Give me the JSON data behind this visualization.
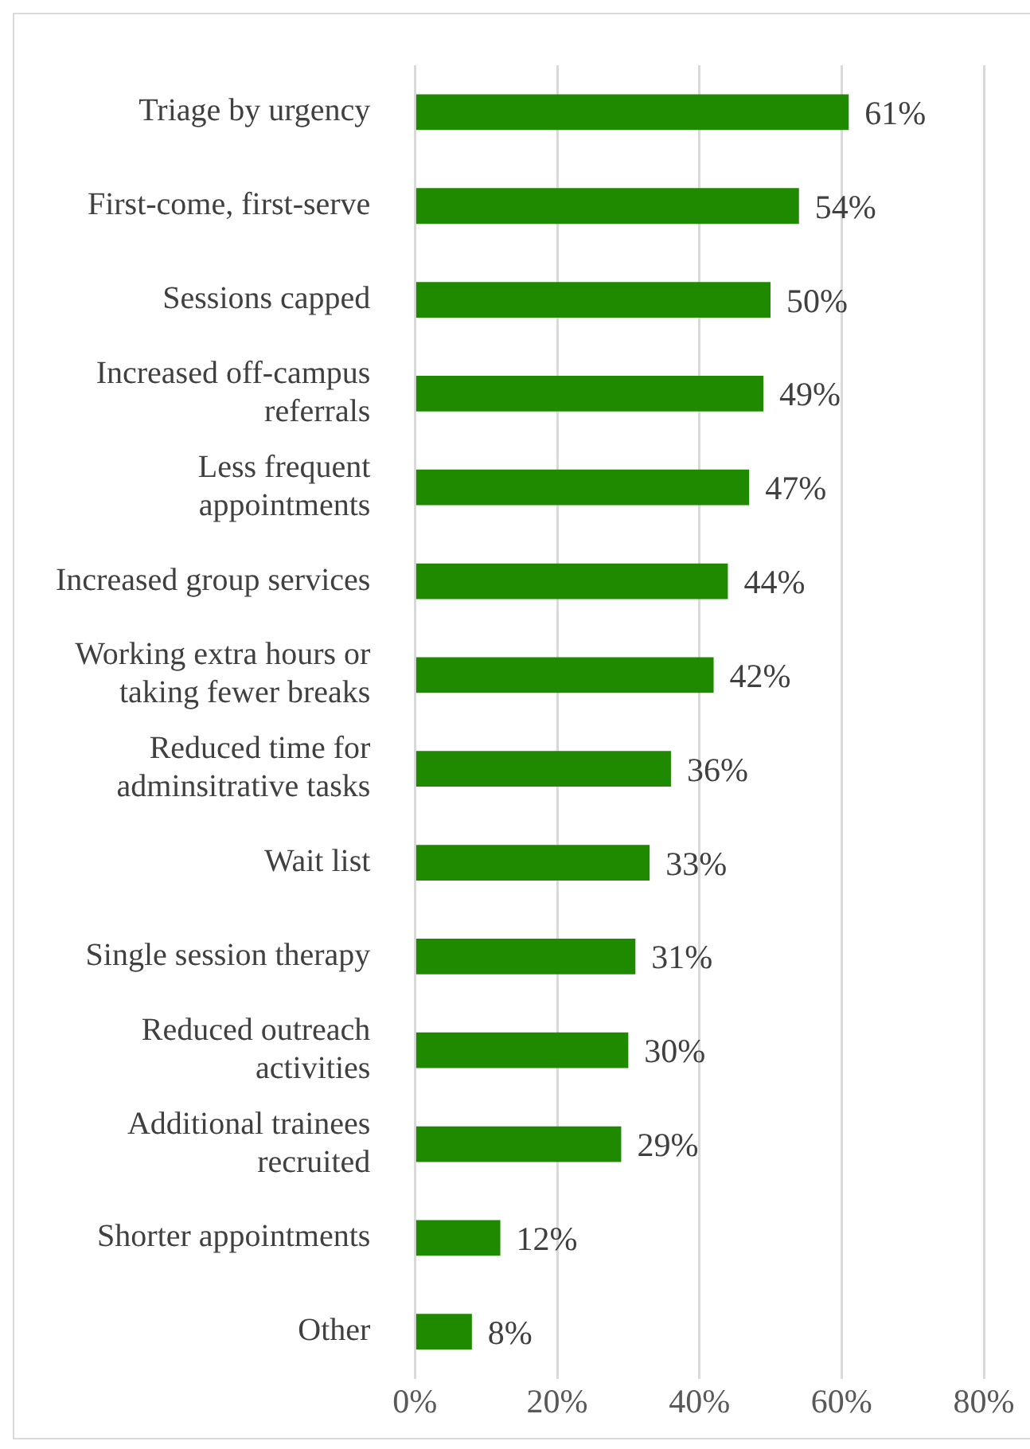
{
  "chart_data": {
    "type": "bar",
    "orientation": "horizontal",
    "categories": [
      "Triage by urgency",
      "First-come, first-serve",
      "Sessions capped",
      "Increased off-campus referrals",
      "Less frequent appointments",
      "Increased group services",
      "Working extra hours or taking fewer breaks",
      "Reduced time for adminsitrative tasks",
      "Wait list",
      "Single session therapy",
      "Reduced outreach activities",
      "Additional trainees recruited",
      "Shorter appointments",
      "Other"
    ],
    "values": [
      61,
      54,
      50,
      49,
      47,
      44,
      42,
      36,
      33,
      31,
      30,
      29,
      12,
      8
    ],
    "value_labels": [
      "61%",
      "54%",
      "50%",
      "49%",
      "47%",
      "44%",
      "42%",
      "36%",
      "33%",
      "31%",
      "30%",
      "29%",
      "12%",
      "8%"
    ],
    "color": "#1f8a00",
    "xlim": [
      0,
      80
    ],
    "xticks": [
      {
        "value": 0,
        "label": "0%"
      },
      {
        "value": 20,
        "label": "20%"
      },
      {
        "value": 40,
        "label": "40%"
      },
      {
        "value": 60,
        "label": "60%"
      },
      {
        "value": 80,
        "label": "80%"
      }
    ],
    "grid": "x",
    "legend": false
  }
}
